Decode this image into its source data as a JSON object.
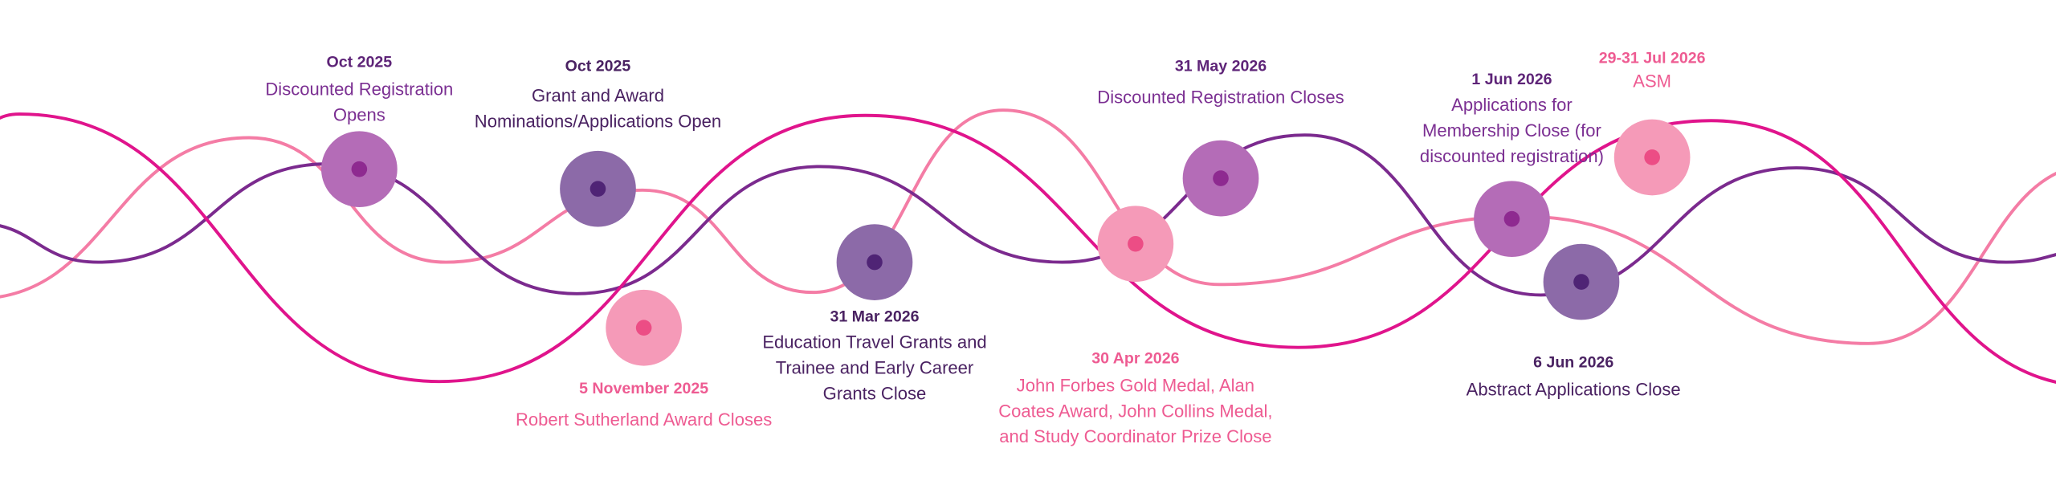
{
  "events": [
    {
      "date": "Oct 2025",
      "lines": [
        "Discounted Registration",
        "Opens"
      ]
    },
    {
      "date": "Oct 2025",
      "lines": [
        "Grant and Award",
        "Nominations/Applications Open"
      ]
    },
    {
      "date": "5 November 2025",
      "lines": [
        "Robert Sutherland Award Closes"
      ]
    },
    {
      "date": "31 Mar 2026",
      "lines": [
        "Education Travel Grants and",
        "Trainee and Early Career",
        "Grants Close"
      ]
    },
    {
      "date": "30 Apr 2026",
      "lines": [
        "John Forbes Gold Medal, Alan",
        "Coates Award, John Collins Medal,",
        "and Study Coordinator Prize Close"
      ]
    },
    {
      "date": "31 May 2026",
      "lines": [
        "Discounted Registration Closes"
      ]
    },
    {
      "date": "1 Jun 2026",
      "lines": [
        "Applications for",
        "Membership Close (for",
        "discounted registration)"
      ]
    },
    {
      "date": "29-31 Jul 2026",
      "lines": [
        "ASM"
      ]
    },
    {
      "date": "6 Jun 2026",
      "lines": [
        "Abstract Applications Close"
      ]
    }
  ]
}
